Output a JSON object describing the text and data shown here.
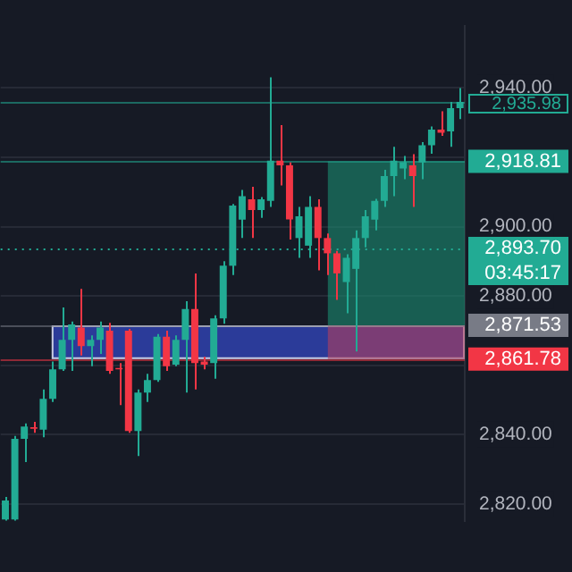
{
  "chart_data": {
    "type": "candlestick",
    "categories": [
      null,
      null,
      null,
      null,
      null,
      null,
      null,
      null,
      null,
      null,
      null,
      null,
      null,
      null,
      null,
      null,
      null,
      null,
      null,
      null,
      null,
      null,
      null,
      null,
      null,
      null,
      null,
      null,
      null,
      null,
      null,
      null,
      null,
      null,
      null,
      null,
      null,
      null,
      null,
      null,
      null,
      null,
      null,
      null,
      null,
      null,
      null,
      null,
      null
    ],
    "ohlc": [
      [
        2815.5,
        2822,
        2815.2,
        2821
      ],
      [
        2815.5,
        2839.6,
        2815.2,
        2838.8
      ],
      [
        2838.8,
        2843.2,
        2832.1,
        2842.3
      ],
      [
        2842.1,
        2843.7,
        2840.5,
        2841.7
      ],
      [
        2841.4,
        2853,
        2839.2,
        2850.3
      ],
      [
        2850.3,
        2861.1,
        2849.4,
        2858.8
      ],
      [
        2858.8,
        2876.7,
        2858.4,
        2867.3
      ],
      [
        2867.3,
        2872.6,
        2858.4,
        2871.8
      ],
      [
        2870.9,
        2882,
        2862.8,
        2865.5
      ],
      [
        2865.5,
        2868.6,
        2859.7,
        2867.3
      ],
      [
        2867.3,
        2872.6,
        2863.3,
        2870.9
      ],
      [
        2870,
        2872.2,
        2857.5,
        2858.4
      ],
      [
        2859.2,
        2860.6,
        2848.5,
        2858.8
      ],
      [
        2870,
        2870.5,
        2840.5,
        2841
      ],
      [
        2841,
        2853,
        2833.8,
        2852.1
      ],
      [
        2852.1,
        2857.5,
        2849.4,
        2855.7
      ],
      [
        2855.7,
        2869,
        2855.2,
        2868.2
      ],
      [
        2868.2,
        2870,
        2858.4,
        2859.7
      ],
      [
        2860.2,
        2868.6,
        2859.7,
        2867.3
      ],
      [
        2867.3,
        2878.5,
        2852.1,
        2876.2
      ],
      [
        2876.2,
        2886.5,
        2853,
        2860.6
      ],
      [
        2861.1,
        2862.4,
        2858.8,
        2860.2
      ],
      [
        2860.6,
        2874.4,
        2856.1,
        2873.5
      ],
      [
        2873.5,
        2890,
        2872,
        2888.7
      ],
      [
        2888.7,
        2906.5,
        2886,
        2906.1
      ],
      [
        2902,
        2910.6,
        2896.7,
        2908.8
      ],
      [
        2907.9,
        2911.5,
        2896.7,
        2904.8
      ],
      [
        2904.8,
        2908.5,
        2902.5,
        2907.9
      ],
      [
        2907.4,
        2943.1,
        2905.7,
        2919
      ],
      [
        2919,
        2929.3,
        2911.9,
        2917.7
      ],
      [
        2917.7,
        2918.5,
        2896.3,
        2902.1
      ],
      [
        2896.7,
        2905.7,
        2891,
        2903
      ],
      [
        2894.5,
        2908.8,
        2891,
        2905.7
      ],
      [
        2905.7,
        2907.9,
        2887.4,
        2896.7
      ],
      [
        2896.7,
        2898,
        2886,
        2892.3
      ],
      [
        2892.3,
        2893,
        2878.9,
        2886.5
      ],
      [
        2884,
        2892,
        2875,
        2891
      ],
      [
        2887.8,
        2898.9,
        2864,
        2896.7
      ],
      [
        2896.7,
        2904.8,
        2894,
        2903
      ],
      [
        2902,
        2908,
        2898.9,
        2907.4
      ],
      [
        2907.4,
        2916.4,
        2905.7,
        2914.6
      ],
      [
        2914.6,
        2923,
        2908.8,
        2919
      ],
      [
        2916.8,
        2920.4,
        2913.7,
        2918.6
      ],
      [
        2917.7,
        2920.9,
        2905.7,
        2914.6
      ],
      [
        2918.5,
        2924.4,
        2913.7,
        2923.5
      ],
      [
        2923.5,
        2928.9,
        2921,
        2928
      ],
      [
        2928,
        2933.3,
        2926.2,
        2927.1
      ],
      [
        2927.5,
        2936,
        2923,
        2934.2
      ],
      [
        2934.2,
        2940,
        2931,
        2935.98
      ]
    ],
    "colors": [
      "#22ab94",
      "#22ab94",
      "#22ab94",
      "#f23645",
      "#22ab94",
      "#22ab94",
      "#22ab94",
      "#22ab94",
      "#f23645",
      "#22ab94",
      "#22ab94",
      "#f23645",
      "#f23645",
      "#f23645",
      "#22ab94",
      "#22ab94",
      "#22ab94",
      "#f23645",
      "#22ab94",
      "#22ab94",
      "#f23645",
      "#f23645",
      "#22ab94",
      "#22ab94",
      "#22ab94",
      "#22ab94",
      "#f23645",
      "#22ab94",
      "#22ab94",
      "#f23645",
      "#f23645",
      "#22ab94",
      "#22ab94",
      "#f23645",
      "#f23645",
      "#f23645",
      "#22ab94",
      "#22ab94",
      "#22ab94",
      "#22ab94",
      "#22ab94",
      "#22ab94",
      "#22ab94",
      "#f23645",
      "#22ab94",
      "#22ab94",
      "#f23645",
      "#22ab94",
      "#22ab94"
    ],
    "ylim": [
      2815,
      2958
    ],
    "yticks": [
      {
        "value": 2820,
        "label": "2,820.00"
      },
      {
        "value": 2840,
        "label": "2,840.00"
      },
      {
        "value": 2860,
        "label": null
      },
      {
        "value": 2880,
        "label": "2,880.00"
      },
      {
        "value": 2900,
        "label": "2,900.00"
      },
      {
        "value": 2920,
        "label": null
      },
      {
        "value": 2940,
        "label": "2,940.00"
      }
    ],
    "grid": "y",
    "bands": [
      {
        "axis": "y",
        "from": 2861.78,
        "to": 2871.53,
        "color": "#2d3fa6"
      },
      {
        "axis": "y",
        "from": 2871.53,
        "to": 2918.81,
        "color": "#1a8c72"
      },
      {
        "axis": "y",
        "from": 2861.78,
        "to": 2871.53,
        "color": "#b0405e"
      }
    ],
    "ref_lines": [
      {
        "axis": "y",
        "value": 2935.98,
        "label": "2,935.98",
        "color": "#22ab94",
        "line_style": "solid"
      },
      {
        "axis": "y",
        "value": 2918.81,
        "label": "2,918.81",
        "color": "#22ab94",
        "line_style": "solid"
      },
      {
        "axis": "y",
        "value": 2893.7,
        "label": "2,893.70",
        "color": "#22ab94",
        "line_style": "dotted"
      },
      {
        "axis": "y",
        "value": 2871.53,
        "label": "2,871.53",
        "color": "#787b86",
        "line_style": "solid"
      },
      {
        "axis": "y",
        "value": 2861.78,
        "label": "2,861.78",
        "color": "#f23645",
        "line_style": "solid"
      }
    ],
    "annotations": [
      "03:45:17"
    ]
  }
}
